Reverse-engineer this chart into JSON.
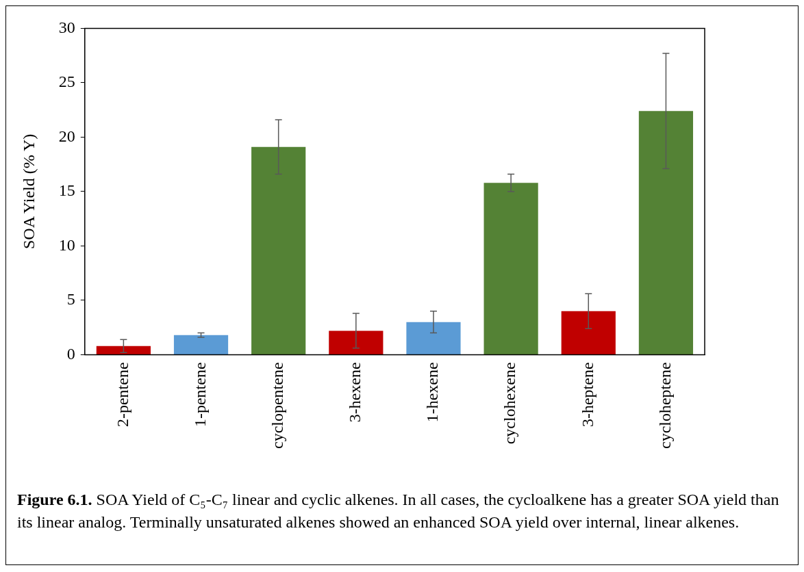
{
  "chart_data": {
    "type": "bar",
    "ylabel": "SOA Yield (% Y)",
    "categories": [
      "2-pentene",
      "1-pentene",
      "cyclopentene",
      "3-hexene",
      "1-hexene",
      "cyclohexene",
      "3-heptene",
      "cycloheptene"
    ],
    "values": [
      0.8,
      1.8,
      19.1,
      2.2,
      3.0,
      15.8,
      4.0,
      22.4
    ],
    "errors": [
      0.6,
      0.2,
      2.5,
      1.6,
      1.0,
      0.8,
      1.6,
      5.3
    ],
    "colors": [
      "#c00000",
      "#5b9bd5",
      "#548235",
      "#c00000",
      "#5b9bd5",
      "#548235",
      "#c00000",
      "#548235"
    ],
    "ylim": [
      0,
      30
    ],
    "yticks": [
      0,
      5,
      10,
      15,
      20,
      25,
      30
    ],
    "grid": false,
    "legend": false,
    "annotations": [
      "Figure 6.1.",
      "SOA Yield of C₅-C₇ linear and cyclic alkenes.  In all cases, the cycloalkene has a greater SOA yield than its linear analog.  Terminally unsaturated alkenes showed an enhanced SOA yield over internal, linear alkenes."
    ]
  }
}
